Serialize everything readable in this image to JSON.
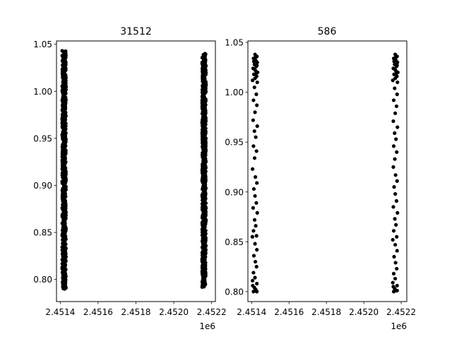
{
  "chart_data": [
    {
      "type": "scatter",
      "title": "31512",
      "xlabel": "",
      "ylabel": "",
      "x_offset_label": "1e6",
      "xlim": [
        2.45138,
        2.45222
      ],
      "ylim": [
        0.7765,
        1.0535
      ],
      "xticks": [
        2.4514,
        2.4516,
        2.4518,
        2.452,
        2.4522
      ],
      "xtick_labels": [
        "2.4514",
        "2.4516",
        "2.4518",
        "2.4520",
        "2.4522"
      ],
      "yticks": [
        0.8,
        0.85,
        0.9,
        0.95,
        1.0,
        1.05
      ],
      "ytick_labels": [
        "0.80",
        "0.85",
        "0.90",
        "0.95",
        "1.00",
        "1.05"
      ],
      "grid": false,
      "marker_color": "#000000",
      "clusters": [
        {
          "x_center": 2.45142,
          "x_spread": 1e-05,
          "y_range": [
            0.79,
            1.043
          ]
        },
        {
          "x_center": 2.45216,
          "x_spread": 1e-05,
          "y_range": [
            0.792,
            1.04
          ]
        }
      ]
    },
    {
      "type": "scatter",
      "title": "586",
      "xlabel": "",
      "ylabel": "",
      "x_offset_label": "1e6",
      "xlim": [
        2.45138,
        2.45223
      ],
      "ylim": [
        0.79,
        1.0515
      ],
      "xticks": [
        2.4514,
        2.4516,
        2.4518,
        2.452,
        2.4522
      ],
      "xtick_labels": [
        "2.4514",
        "2.4516",
        "2.4518",
        "2.4520",
        "2.4522"
      ],
      "yticks": [
        0.8,
        0.85,
        0.9,
        0.95,
        1.0,
        1.05
      ],
      "ytick_labels": [
        "0.80",
        "0.85",
        "0.90",
        "0.95",
        "1.00",
        "1.05"
      ],
      "grid": false,
      "marker_color": "#000000",
      "points": [
        [
          2.451418,
          1.038
        ],
        [
          2.451428,
          1.036
        ],
        [
          2.45141,
          1.034
        ],
        [
          2.451422,
          1.032
        ],
        [
          2.45143,
          1.03
        ],
        [
          2.451415,
          1.028
        ],
        [
          2.451425,
          1.026
        ],
        [
          2.451408,
          1.024
        ],
        [
          2.45142,
          1.022
        ],
        [
          2.451432,
          1.02
        ],
        [
          2.451412,
          1.018
        ],
        [
          2.451427,
          1.016
        ],
        [
          2.451418,
          1.014
        ],
        [
          2.451405,
          1.012
        ],
        [
          2.45143,
          1.01
        ],
        [
          2.45142,
          1.035
        ],
        [
          2.451412,
          1.031
        ],
        [
          2.451428,
          1.027
        ],
        [
          2.451416,
          1.023
        ],
        [
          2.451424,
          1.019
        ],
        [
          2.451415,
          1.005
        ],
        [
          2.451425,
          0.998
        ],
        [
          2.45141,
          0.992
        ],
        [
          2.451428,
          0.987
        ],
        [
          2.451418,
          0.98
        ],
        [
          2.451408,
          0.972
        ],
        [
          2.45143,
          0.966
        ],
        [
          2.451415,
          0.961
        ],
        [
          2.451422,
          0.955
        ],
        [
          2.45141,
          0.946
        ],
        [
          2.451426,
          0.941
        ],
        [
          2.451416,
          0.934
        ],
        [
          2.451405,
          0.923
        ],
        [
          2.45142,
          0.915
        ],
        [
          2.451428,
          0.909
        ],
        [
          2.451412,
          0.903
        ],
        [
          2.451418,
          0.896
        ],
        [
          2.451425,
          0.889
        ],
        [
          2.451408,
          0.884
        ],
        [
          2.45143,
          0.879
        ],
        [
          2.451416,
          0.872
        ],
        [
          2.451422,
          0.866
        ],
        [
          2.45141,
          0.861
        ],
        [
          2.451426,
          0.856
        ],
        [
          2.451404,
          0.855
        ],
        [
          2.451418,
          0.848
        ],
        [
          2.451428,
          0.842
        ],
        [
          2.451412,
          0.836
        ],
        [
          2.45142,
          0.83
        ],
        [
          2.451426,
          0.825
        ],
        [
          2.45141,
          0.819
        ],
        [
          2.451418,
          0.814
        ],
        [
          2.451405,
          0.811
        ],
        [
          2.451428,
          0.808
        ],
        [
          2.451415,
          0.804
        ],
        [
          2.451422,
          0.802
        ],
        [
          2.45141,
          0.8
        ],
        [
          2.451428,
          0.8
        ],
        [
          2.451418,
          0.801
        ],
        [
          2.451406,
          0.806
        ],
        [
          2.452168,
          1.038
        ],
        [
          2.452178,
          1.036
        ],
        [
          2.45216,
          1.034
        ],
        [
          2.452172,
          1.032
        ],
        [
          2.45218,
          1.03
        ],
        [
          2.452165,
          1.028
        ],
        [
          2.452175,
          1.026
        ],
        [
          2.452158,
          1.024
        ],
        [
          2.45217,
          1.022
        ],
        [
          2.452182,
          1.02
        ],
        [
          2.452162,
          1.018
        ],
        [
          2.452177,
          1.016
        ],
        [
          2.452168,
          1.014
        ],
        [
          2.452155,
          1.012
        ],
        [
          2.45218,
          1.01
        ],
        [
          2.45217,
          1.035
        ],
        [
          2.452162,
          1.031
        ],
        [
          2.452178,
          1.027
        ],
        [
          2.452166,
          1.023
        ],
        [
          2.452174,
          1.019
        ],
        [
          2.452165,
          1.004
        ],
        [
          2.452178,
          0.998
        ],
        [
          2.45216,
          0.992
        ],
        [
          2.452175,
          0.986
        ],
        [
          2.452168,
          0.979
        ],
        [
          2.452158,
          0.971
        ],
        [
          2.45218,
          0.965
        ],
        [
          2.452165,
          0.959
        ],
        [
          2.452172,
          0.953
        ],
        [
          2.45216,
          0.946
        ],
        [
          2.452176,
          0.94
        ],
        [
          2.452166,
          0.933
        ],
        [
          2.452158,
          0.925
        ],
        [
          2.45217,
          0.917
        ],
        [
          2.452178,
          0.911
        ],
        [
          2.452162,
          0.905
        ],
        [
          2.452168,
          0.898
        ],
        [
          2.452175,
          0.891
        ],
        [
          2.452158,
          0.885
        ],
        [
          2.45218,
          0.879
        ],
        [
          2.452166,
          0.873
        ],
        [
          2.452172,
          0.867
        ],
        [
          2.45216,
          0.861
        ],
        [
          2.452176,
          0.855
        ],
        [
          2.452155,
          0.852
        ],
        [
          2.452168,
          0.847
        ],
        [
          2.452178,
          0.841
        ],
        [
          2.452162,
          0.835
        ],
        [
          2.45217,
          0.829
        ],
        [
          2.452176,
          0.823
        ],
        [
          2.45216,
          0.818
        ],
        [
          2.452168,
          0.813
        ],
        [
          2.452155,
          0.809
        ],
        [
          2.452178,
          0.806
        ],
        [
          2.452165,
          0.803
        ],
        [
          2.452172,
          0.801
        ],
        [
          2.45216,
          0.8
        ],
        [
          2.452178,
          0.801
        ],
        [
          2.452168,
          0.802
        ],
        [
          2.452158,
          0.805
        ]
      ]
    }
  ]
}
